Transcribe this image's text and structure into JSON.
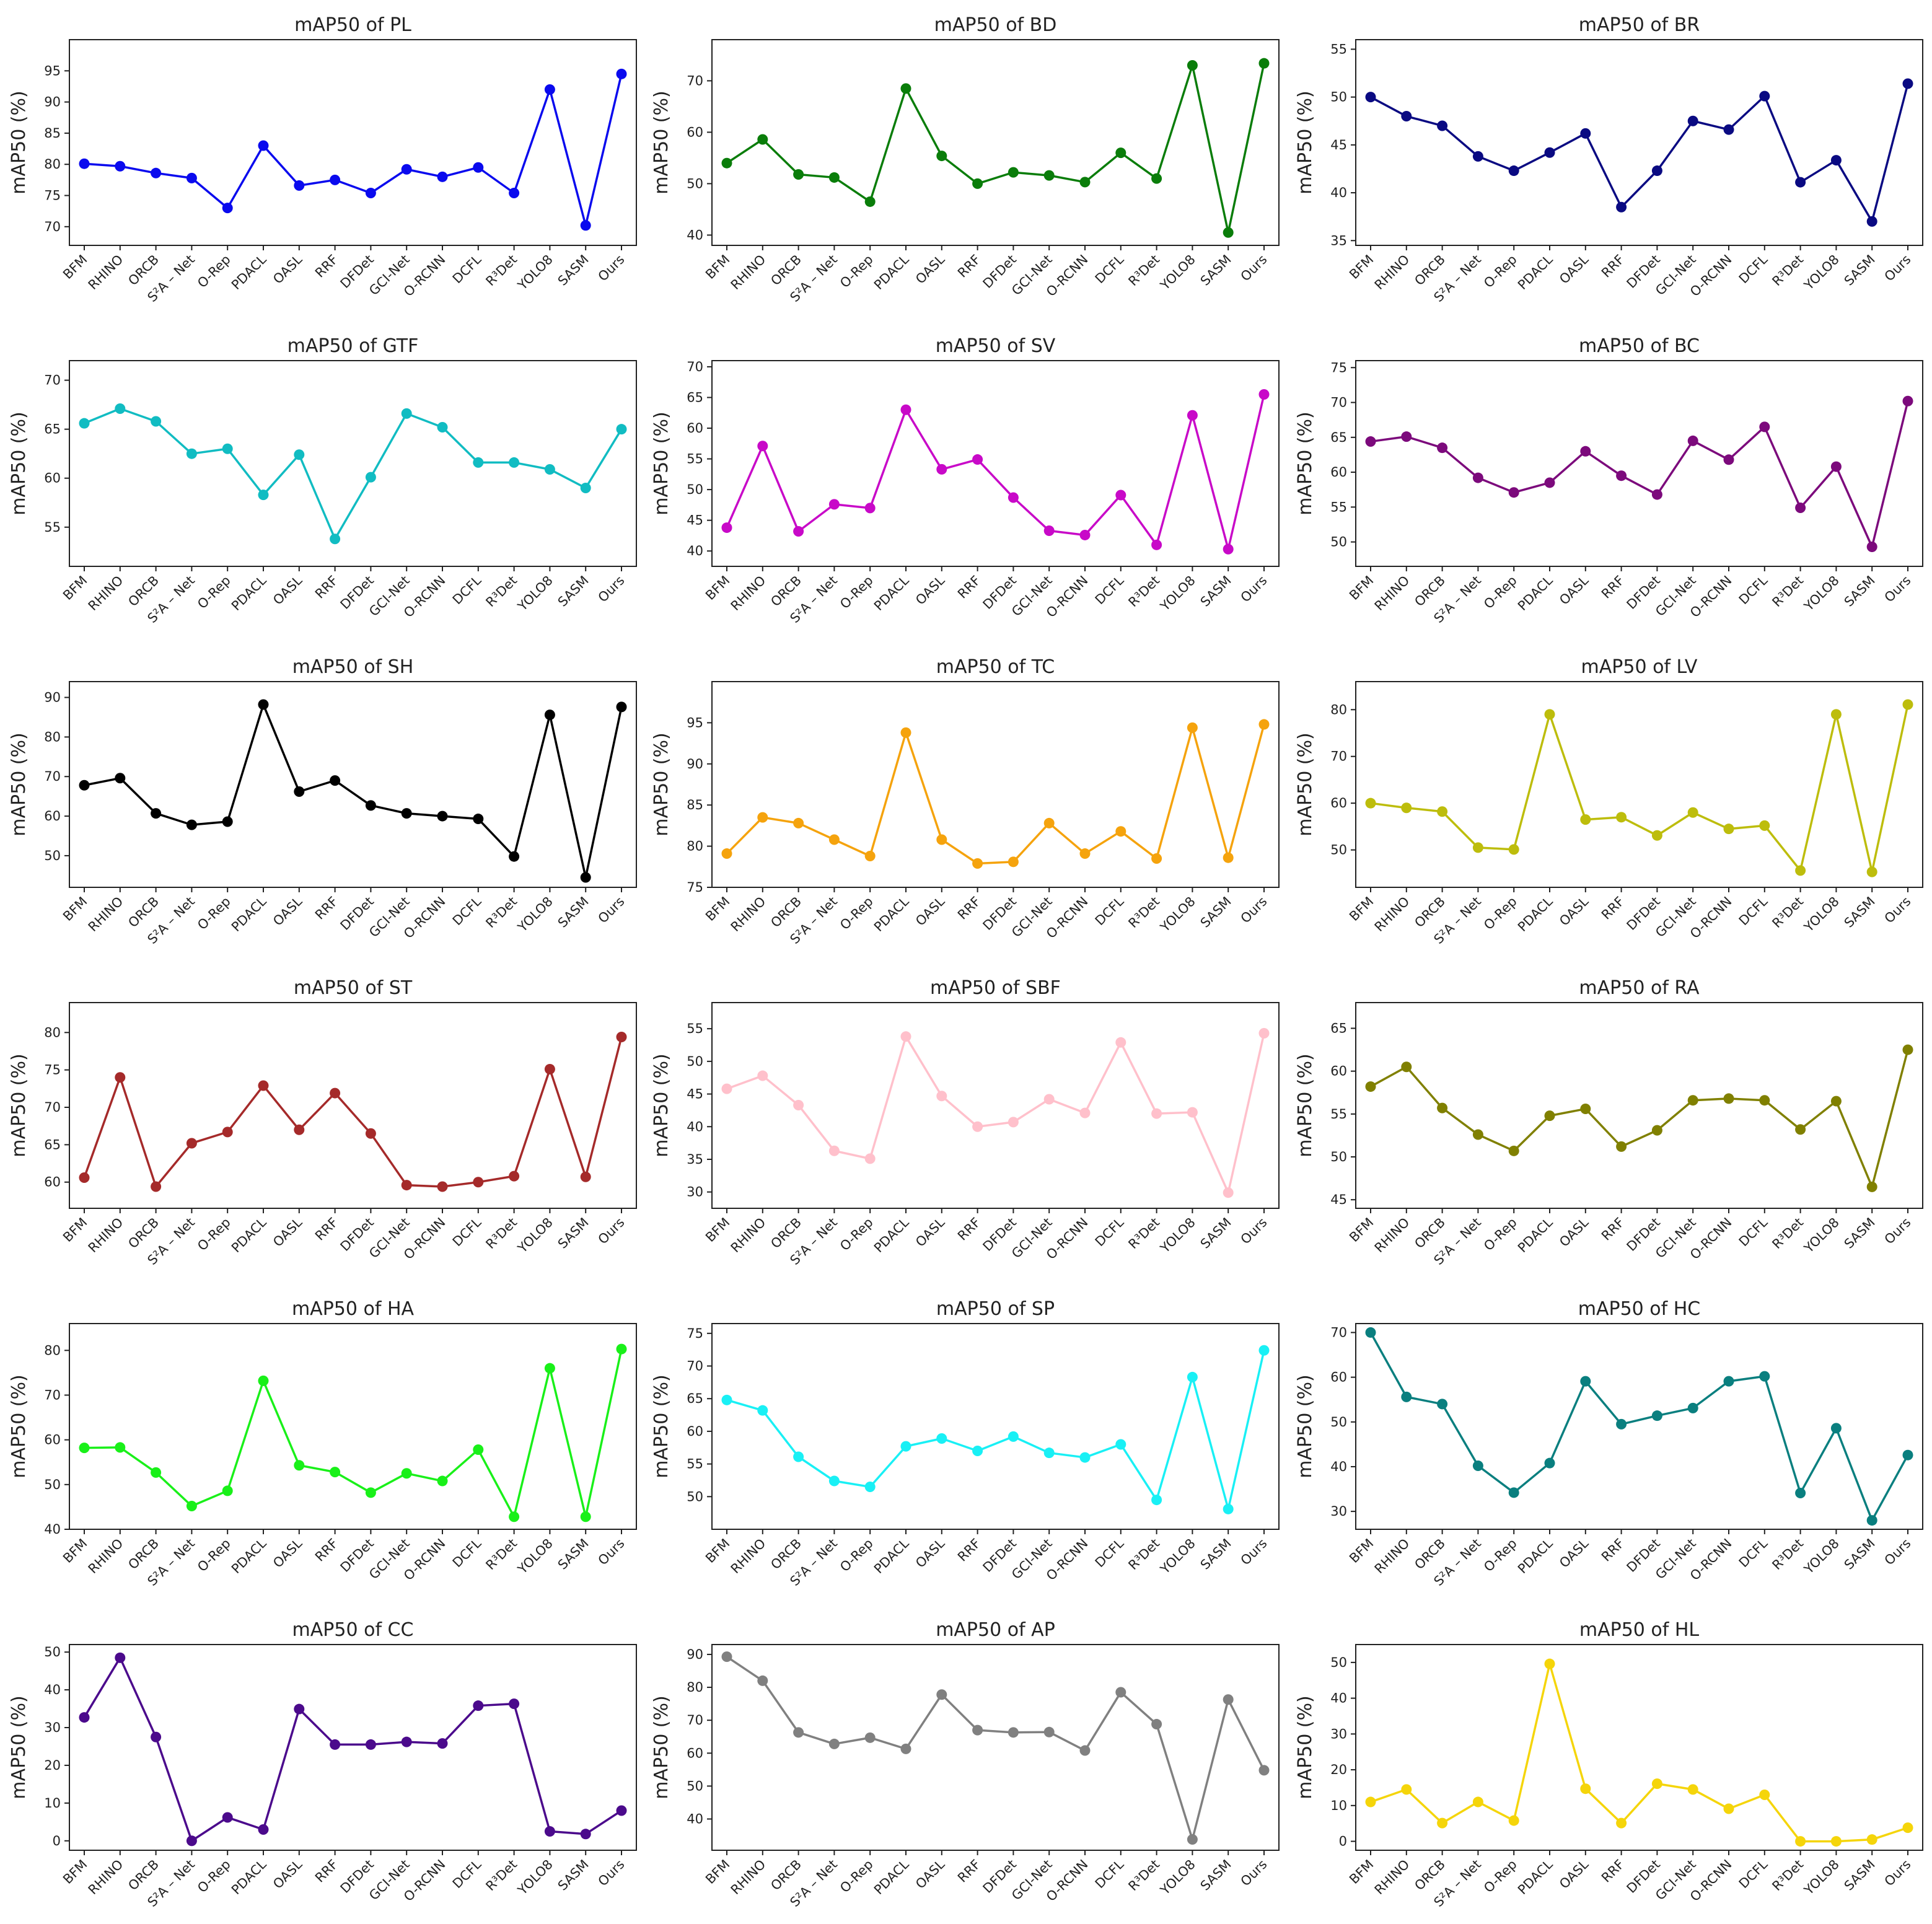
{
  "y_axis_label": "mAP50 (%)",
  "categories": [
    "BFM",
    "RHINO",
    "ORCB",
    "S²A – Net",
    "O-Rep",
    "PDACL",
    "OASL",
    "RRF",
    "DFDet",
    "GCI-Net",
    "O-RCNN",
    "DCFL",
    "R³Det",
    "YOLO8",
    "SASM",
    "Ours"
  ],
  "chart_data": [
    {
      "type": "line",
      "title": "mAP50 of PL",
      "ylabel": "mAP50 (%)",
      "color": "#0a0aee",
      "ylim": [
        67,
        100
      ],
      "yticks": [
        70,
        75,
        80,
        85,
        90,
        95
      ],
      "values": [
        80.1,
        79.7,
        78.6,
        77.8,
        73.0,
        83.0,
        76.6,
        77.5,
        75.4,
        79.2,
        78.0,
        79.5,
        75.4,
        92.0,
        70.2,
        94.5
      ]
    },
    {
      "type": "line",
      "title": "mAP50 of BD",
      "ylabel": "mAP50 (%)",
      "color": "#0a7d0a",
      "ylim": [
        38,
        78
      ],
      "yticks": [
        40,
        50,
        60,
        70
      ],
      "values": [
        54.0,
        58.6,
        51.8,
        51.2,
        46.5,
        68.5,
        55.4,
        50.0,
        52.2,
        51.6,
        50.3,
        56.0,
        51.0,
        73.0,
        40.5,
        73.4
      ]
    },
    {
      "type": "line",
      "title": "mAP50 of BR",
      "ylabel": "mAP50 (%)",
      "color": "#0a0a82",
      "ylim": [
        34.5,
        56
      ],
      "yticks": [
        35,
        40,
        45,
        50,
        55
      ],
      "values": [
        50.0,
        48.0,
        47.0,
        43.8,
        42.3,
        44.2,
        46.2,
        38.5,
        42.3,
        47.5,
        46.6,
        50.1,
        41.1,
        43.4,
        37.0,
        51.4
      ]
    },
    {
      "type": "line",
      "title": "mAP50 of GTF",
      "ylabel": "mAP50 (%)",
      "color": "#11bcc2",
      "ylim": [
        51,
        72
      ],
      "yticks": [
        55,
        60,
        65,
        70
      ],
      "values": [
        65.6,
        67.1,
        65.8,
        62.5,
        63.0,
        58.3,
        62.4,
        53.8,
        60.1,
        66.6,
        65.2,
        61.6,
        61.6,
        60.9,
        59.0,
        65.0
      ]
    },
    {
      "type": "line",
      "title": "mAP50 of SV",
      "ylabel": "mAP50 (%)",
      "color": "#c809c8",
      "ylim": [
        37.5,
        71
      ],
      "yticks": [
        40,
        45,
        50,
        55,
        60,
        65,
        70
      ],
      "values": [
        43.8,
        57.1,
        43.2,
        47.6,
        47.0,
        63.0,
        53.3,
        54.9,
        48.7,
        43.3,
        42.6,
        49.1,
        41.0,
        62.1,
        40.3,
        65.5
      ]
    },
    {
      "type": "line",
      "title": "mAP50 of BC",
      "ylabel": "mAP50 (%)",
      "color": "#7c0a7c",
      "ylim": [
        46.5,
        76
      ],
      "yticks": [
        50,
        55,
        60,
        65,
        70,
        75
      ],
      "values": [
        64.4,
        65.1,
        63.5,
        59.2,
        57.1,
        58.5,
        63.0,
        59.5,
        56.8,
        64.5,
        61.8,
        66.5,
        54.9,
        60.8,
        49.3,
        70.2
      ]
    },
    {
      "type": "line",
      "title": "mAP50 of SH",
      "ylabel": "mAP50 (%)",
      "color": "#000000",
      "ylim": [
        42,
        94
      ],
      "yticks": [
        50,
        60,
        70,
        80,
        90
      ],
      "values": [
        67.8,
        69.6,
        60.7,
        57.8,
        58.6,
        88.2,
        66.2,
        69.0,
        62.7,
        60.7,
        60.0,
        59.3,
        49.8,
        85.6,
        44.5,
        87.6
      ]
    },
    {
      "type": "line",
      "title": "mAP50 of TC",
      "ylabel": "mAP50 (%)",
      "color": "#f5a30d",
      "ylim": [
        75,
        100
      ],
      "yticks": [
        75,
        80,
        85,
        90,
        95
      ],
      "values": [
        79.1,
        83.5,
        82.8,
        80.8,
        78.8,
        93.8,
        80.8,
        77.9,
        78.1,
        82.8,
        79.1,
        81.8,
        78.5,
        94.4,
        78.6,
        94.8
      ]
    },
    {
      "type": "line",
      "title": "mAP50 of LV",
      "ylabel": "mAP50 (%)",
      "color": "#bdbd0c",
      "ylim": [
        42,
        86
      ],
      "yticks": [
        50,
        60,
        70,
        80
      ],
      "values": [
        60.0,
        59.0,
        58.2,
        50.5,
        50.1,
        79.0,
        56.5,
        57.0,
        53.1,
        58.0,
        54.5,
        55.2,
        45.6,
        79.0,
        45.3,
        81.1
      ]
    },
    {
      "type": "line",
      "title": "mAP50 of ST",
      "ylabel": "mAP50 (%)",
      "color": "#a52a2a",
      "ylim": [
        56.5,
        84
      ],
      "yticks": [
        60,
        65,
        70,
        75,
        80
      ],
      "values": [
        60.6,
        74.0,
        59.4,
        65.2,
        66.7,
        72.9,
        67.0,
        71.9,
        66.5,
        59.6,
        59.4,
        60.0,
        60.8,
        75.1,
        60.7,
        79.4
      ]
    },
    {
      "type": "line",
      "title": "mAP50 of SBF",
      "ylabel": "mAP50 (%)",
      "color": "#ffc0cb",
      "ylim": [
        27.5,
        59
      ],
      "yticks": [
        30,
        35,
        40,
        45,
        50,
        55
      ],
      "values": [
        45.8,
        47.8,
        43.3,
        36.3,
        35.1,
        53.8,
        44.7,
        40.0,
        40.7,
        44.2,
        42.1,
        52.9,
        42.0,
        42.2,
        29.9,
        54.3
      ]
    },
    {
      "type": "line",
      "title": "mAP50 of RA",
      "ylabel": "mAP50 (%)",
      "color": "#808000",
      "ylim": [
        44,
        68
      ],
      "yticks": [
        45,
        50,
        55,
        60,
        65
      ],
      "values": [
        58.2,
        60.5,
        55.7,
        52.6,
        50.7,
        54.8,
        55.6,
        51.2,
        53.1,
        56.6,
        56.8,
        56.6,
        53.2,
        56.5,
        46.5,
        62.5
      ]
    },
    {
      "type": "line",
      "title": "mAP50 of HA",
      "ylabel": "mAP50 (%)",
      "color": "#19f019",
      "ylim": [
        40,
        86
      ],
      "yticks": [
        40,
        50,
        60,
        70,
        80
      ],
      "values": [
        58.2,
        58.3,
        52.7,
        45.2,
        48.6,
        73.2,
        54.3,
        52.8,
        48.2,
        52.5,
        50.8,
        57.8,
        42.8,
        76.0,
        42.8,
        80.3
      ]
    },
    {
      "type": "line",
      "title": "mAP50 of SP",
      "ylabel": "mAP50 (%)",
      "color": "#19f0f5",
      "ylim": [
        45,
        76.5
      ],
      "yticks": [
        50,
        55,
        60,
        65,
        70,
        75
      ],
      "values": [
        64.8,
        63.2,
        56.1,
        52.4,
        51.5,
        57.7,
        58.9,
        57.0,
        59.2,
        56.7,
        56.0,
        58.0,
        49.5,
        68.3,
        48.1,
        72.4
      ]
    },
    {
      "type": "line",
      "title": "mAP50 of HC",
      "ylabel": "mAP50 (%)",
      "color": "#0a7f7f",
      "ylim": [
        26,
        72
      ],
      "yticks": [
        30,
        40,
        50,
        60,
        70
      ],
      "values": [
        70.0,
        55.6,
        54.0,
        40.2,
        34.2,
        40.8,
        59.1,
        49.5,
        51.4,
        53.1,
        59.1,
        60.2,
        34.1,
        48.6,
        28.0,
        42.6
      ]
    },
    {
      "type": "line",
      "title": "mAP50 of CC",
      "ylabel": "mAP50 (%)",
      "color": "#4b0a8c",
      "ylim": [
        -2.5,
        52
      ],
      "yticks": [
        0,
        10,
        20,
        30,
        40,
        50
      ],
      "values": [
        32.7,
        48.5,
        27.5,
        0.0,
        6.2,
        3.0,
        34.9,
        25.5,
        25.5,
        26.2,
        25.8,
        35.8,
        36.3,
        2.5,
        1.8,
        8.0
      ]
    },
    {
      "type": "line",
      "title": "mAP50 of AP",
      "ylabel": "mAP50 (%)",
      "color": "#808080",
      "ylim": [
        30.5,
        93
      ],
      "yticks": [
        40,
        50,
        60,
        70,
        80,
        90
      ],
      "values": [
        89.3,
        82.0,
        66.3,
        62.8,
        64.7,
        61.3,
        77.8,
        67.0,
        66.3,
        66.4,
        60.8,
        78.5,
        68.8,
        33.8,
        76.3,
        54.8
      ]
    },
    {
      "type": "line",
      "title": "mAP50 of HL",
      "ylabel": "mAP50 (%)",
      "color": "#f5d50a",
      "ylim": [
        -2.5,
        55
      ],
      "yticks": [
        0,
        10,
        20,
        30,
        40,
        50
      ],
      "values": [
        11.0,
        14.5,
        5.1,
        11.0,
        5.8,
        49.6,
        14.7,
        5.1,
        16.1,
        14.5,
        9.1,
        13.0,
        0.0,
        0.0,
        0.5,
        3.8
      ]
    }
  ]
}
